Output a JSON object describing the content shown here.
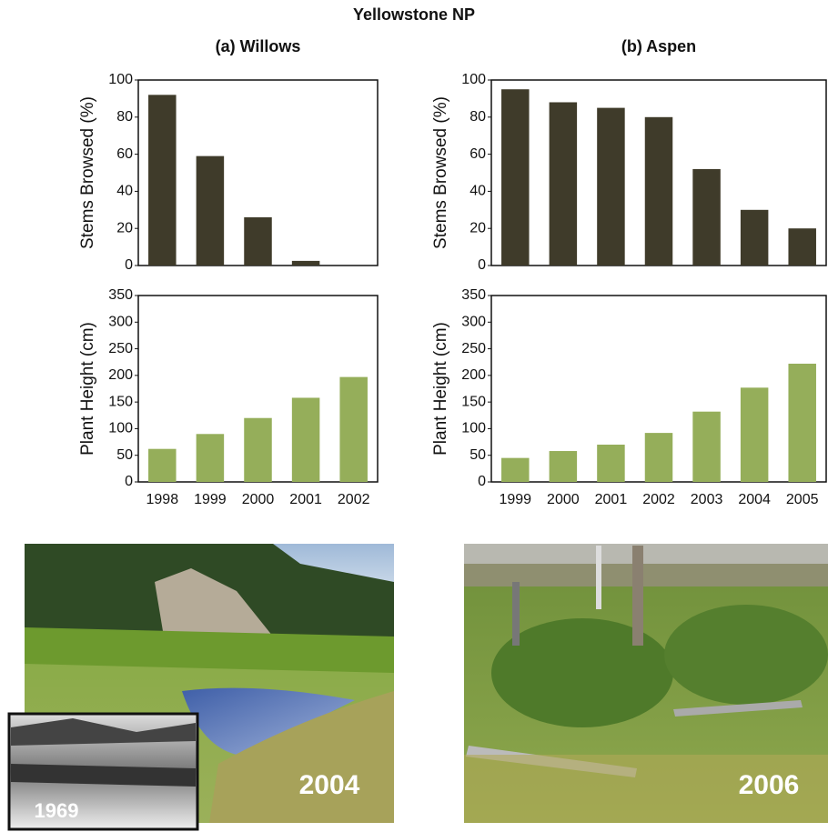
{
  "title": "Yellowstone NP",
  "chart_data": [
    {
      "type": "bar",
      "title": "(a) Willows",
      "y_label": "Stems Browsed (%)",
      "categories": [
        null,
        null,
        null,
        null,
        null
      ],
      "values": [
        92,
        59,
        26,
        2.5,
        0
      ],
      "color": "#3f3b2a",
      "ylim": [
        0,
        100
      ],
      "yticks": [
        0,
        20,
        40,
        60,
        80,
        100
      ]
    },
    {
      "type": "bar",
      "y_label": "Plant Height (cm)",
      "categories": [
        "1998",
        "1999",
        "2000",
        "2001",
        "2002"
      ],
      "values": [
        62,
        90,
        120,
        158,
        197
      ],
      "color": "#95ae5a",
      "ylim": [
        0,
        350
      ],
      "yticks": [
        0,
        50,
        100,
        150,
        200,
        250,
        300,
        350
      ]
    },
    {
      "type": "bar",
      "title": "(b) Aspen",
      "y_label": "Stems Browsed (%)",
      "categories": [
        null,
        null,
        null,
        null,
        null,
        null,
        null
      ],
      "values": [
        95,
        88,
        85,
        80,
        52,
        30,
        20
      ],
      "color": "#3f3b2a",
      "ylim": [
        0,
        100
      ],
      "yticks": [
        0,
        20,
        40,
        60,
        80,
        100
      ]
    },
    {
      "type": "bar",
      "y_label": "Plant Height (cm)",
      "categories": [
        "1999",
        "2000",
        "2001",
        "2002",
        "2003",
        "2004",
        "2005"
      ],
      "values": [
        45,
        58,
        70,
        92,
        132,
        177,
        222
      ],
      "color": "#95ae5a",
      "ylim": [
        0,
        350
      ],
      "yticks": [
        0,
        50,
        100,
        150,
        200,
        250,
        300,
        350
      ]
    }
  ],
  "photos": [
    {
      "label": "2004",
      "inset_label": "1969"
    },
    {
      "label": "2006"
    }
  ]
}
